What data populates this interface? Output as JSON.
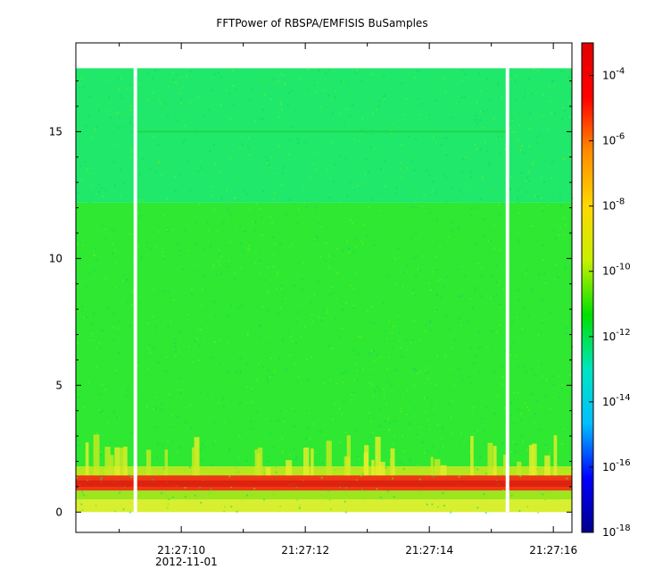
{
  "chart_data": {
    "type": "heatmap",
    "title": "FFTPower of RBSPA/EMFISIS  BuSamples",
    "xlabel": "",
    "ylabel": "",
    "ylim": [
      -0.8,
      18.5
    ],
    "y_ticks": [
      {
        "value": 0,
        "label": "0"
      },
      {
        "value": 5,
        "label": "5"
      },
      {
        "value": 10,
        "label": "10"
      },
      {
        "value": 15,
        "label": "15"
      }
    ],
    "x_ticks": [
      {
        "seconds": 10,
        "label": "21:27:10"
      },
      {
        "seconds": 12,
        "label": "21:27:12"
      },
      {
        "seconds": 14,
        "label": "21:27:14"
      },
      {
        "seconds": 16,
        "label": "21:27:16"
      }
    ],
    "x_minor_ticks_seconds": [
      9,
      11,
      13,
      15
    ],
    "xlim_seconds": [
      8.3,
      16.3
    ],
    "date_label": "2012-11-01",
    "data_gaps_seconds": [
      9.26,
      15.26
    ],
    "frequency_max": 17.5,
    "bands": [
      {
        "from": 0.0,
        "to": 0.5,
        "level": "1e-9",
        "color": "#d8ef30"
      },
      {
        "from": 0.5,
        "to": 0.85,
        "level": "1e-10",
        "color": "#9be61f"
      },
      {
        "from": 0.85,
        "to": 1.45,
        "level": "1e-6",
        "color": "#ee3a14"
      },
      {
        "from": 1.45,
        "to": 1.8,
        "level": "1e-9",
        "color": "#b5e71c"
      },
      {
        "from": 1.8,
        "to": 12.2,
        "level": "1e-10",
        "color": "#2ee831"
      },
      {
        "from": 12.2,
        "to": 17.5,
        "level": "1e-12",
        "color": "#1fe86a"
      }
    ],
    "line_at": 15.0,
    "colorbar": {
      "scale": "log",
      "range": [
        "1e-18",
        "1e-3"
      ],
      "tick_labels": [
        {
          "base": "10",
          "exp": "-4",
          "log": -4
        },
        {
          "base": "10",
          "exp": "-6",
          "log": -6
        },
        {
          "base": "10",
          "exp": "-8",
          "log": -8
        },
        {
          "base": "10",
          "exp": "-10",
          "log": -10
        },
        {
          "base": "10",
          "exp": "-12",
          "log": -12
        },
        {
          "base": "10",
          "exp": "-14",
          "log": -14
        },
        {
          "base": "10",
          "exp": "-16",
          "log": -16
        },
        {
          "base": "10",
          "exp": "-18",
          "log": -18
        }
      ],
      "colors": [
        "#00008b",
        "#0000ff",
        "#00bfff",
        "#00e5c0",
        "#00e000",
        "#c8f000",
        "#ffd700",
        "#ff8c00",
        "#ff0000",
        "#e00000"
      ]
    }
  }
}
